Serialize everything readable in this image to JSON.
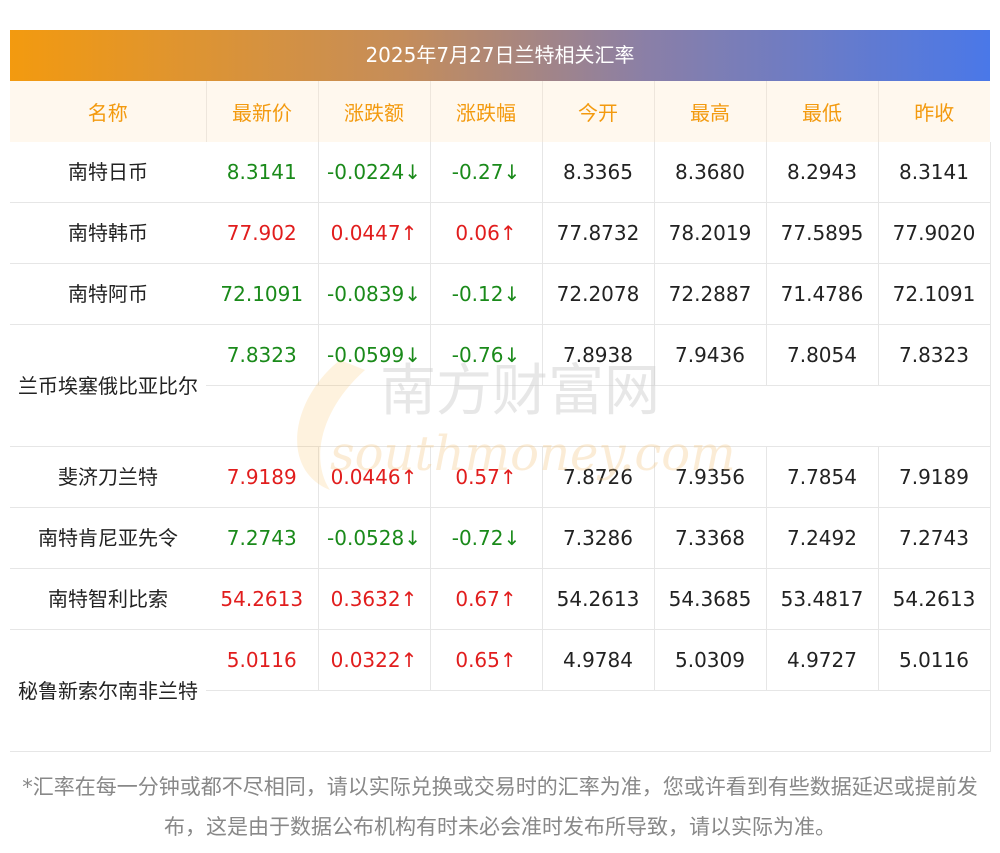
{
  "title": "2025年7月27日兰特相关汇率",
  "headers": [
    "名称",
    "最新价",
    "涨跌额",
    "涨跌幅",
    "今开",
    "最高",
    "最低",
    "昨收"
  ],
  "rows": [
    {
      "name": "南特日币",
      "latest": "8.3141",
      "change": "-0.0224↓",
      "pct": "-0.27↓",
      "open": "8.3365",
      "high": "8.3680",
      "low": "8.2943",
      "prev": "8.3141",
      "dir": "down"
    },
    {
      "name": "南特韩币",
      "latest": "77.902",
      "change": "0.0447↑",
      "pct": "0.06↑",
      "open": "77.8732",
      "high": "78.2019",
      "low": "77.5895",
      "prev": "77.9020",
      "dir": "up"
    },
    {
      "name": "南特阿币",
      "latest": "72.1091",
      "change": "-0.0839↓",
      "pct": "-0.12↓",
      "open": "72.2078",
      "high": "72.2887",
      "low": "71.4786",
      "prev": "72.1091",
      "dir": "down"
    },
    {
      "name": "兰币埃塞俄比亚比尔",
      "latest": "7.8323",
      "change": "-0.0599↓",
      "pct": "-0.76↓",
      "open": "7.8938",
      "high": "7.9436",
      "low": "7.8054",
      "prev": "7.8323",
      "dir": "down"
    },
    {
      "name": "斐济刀兰特",
      "latest": "7.9189",
      "change": "0.0446↑",
      "pct": "0.57↑",
      "open": "7.8726",
      "high": "7.9356",
      "low": "7.7854",
      "prev": "7.9189",
      "dir": "up"
    },
    {
      "name": "南特肯尼亚先令",
      "latest": "7.2743",
      "change": "-0.0528↓",
      "pct": "-0.72↓",
      "open": "7.3286",
      "high": "7.3368",
      "low": "7.2492",
      "prev": "7.2743",
      "dir": "down"
    },
    {
      "name": "南特智利比索",
      "latest": "54.2613",
      "change": "0.3632↑",
      "pct": "0.67↑",
      "open": "54.2613",
      "high": "54.3685",
      "low": "53.4817",
      "prev": "54.2613",
      "dir": "up"
    },
    {
      "name": "秘鲁新索尔南非兰特",
      "latest": "5.0116",
      "change": "0.0322↑",
      "pct": "0.65↑",
      "open": "4.9784",
      "high": "5.0309",
      "low": "4.9727",
      "prev": "5.0116",
      "dir": "up"
    }
  ],
  "footnote": "*汇率在每一分钟或都不尽相同，请以实际兑换或交易时的汇率为准，您或许看到有些数据延迟或提前发布，这是由于数据公布机构有时未必会准时发布所导致，请以实际为准。",
  "watermark": {
    "cn": "南方财富网",
    "en": "southmoney.com"
  },
  "colors": {
    "up": "#e11d1d",
    "down": "#1a8a1a",
    "header_text": "#f39a0f"
  }
}
